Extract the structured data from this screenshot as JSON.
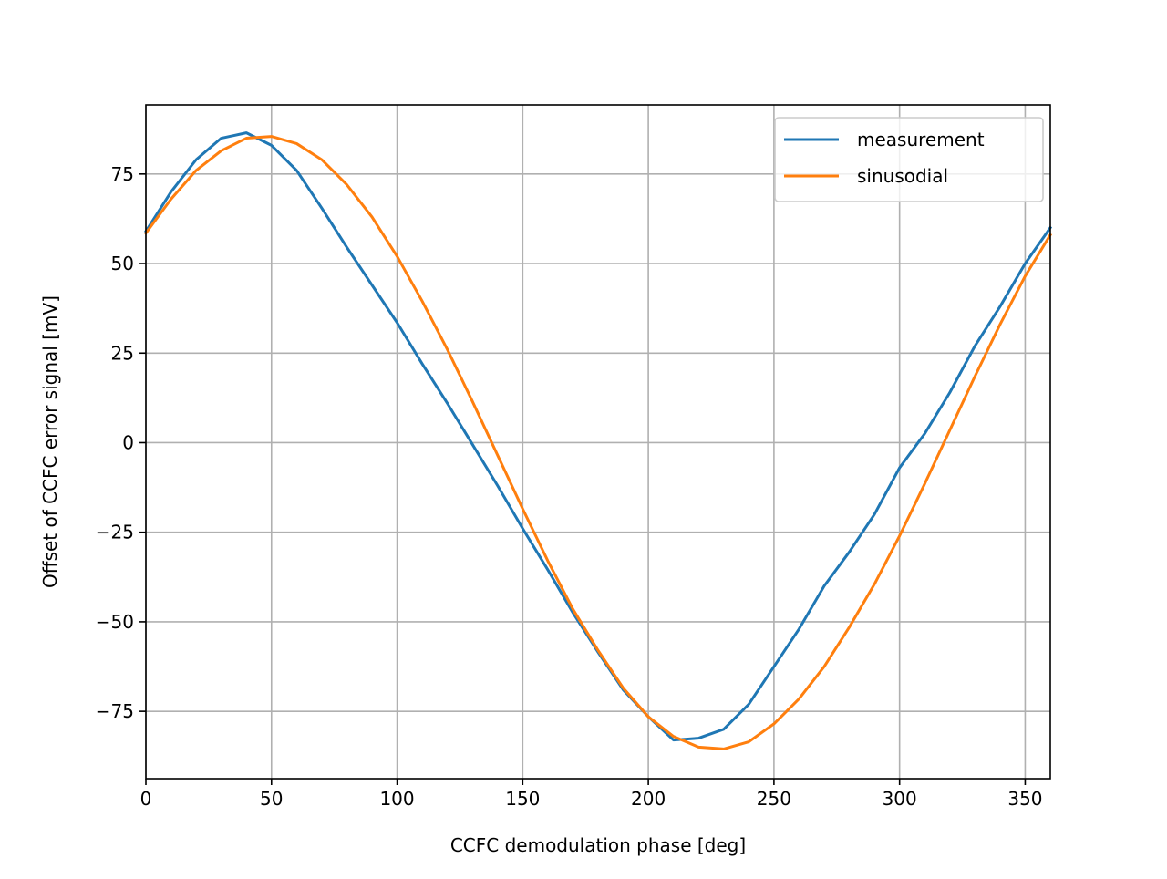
{
  "chart_data": {
    "type": "line",
    "title": "",
    "xlabel": "CCFC demodulation phase [deg]",
    "ylabel": "Offset of CCFC error signal [mV]",
    "xlim": [
      0,
      360
    ],
    "ylim": [
      -93.8,
      94.3
    ],
    "xticks": [
      0,
      50,
      100,
      150,
      200,
      250,
      300,
      350
    ],
    "yticks": [
      -75,
      -50,
      -25,
      0,
      25,
      50,
      75
    ],
    "xtick_labels": [
      "0",
      "50",
      "100",
      "150",
      "200",
      "250",
      "300",
      "350"
    ],
    "ytick_labels": [
      "−75",
      "−50",
      "−25",
      "0",
      "25",
      "50",
      "75"
    ],
    "grid": true,
    "legend_position": "upper right",
    "x": [
      0,
      10,
      20,
      30,
      40,
      50,
      60,
      70,
      80,
      90,
      100,
      110,
      120,
      130,
      140,
      150,
      160,
      170,
      180,
      190,
      200,
      210,
      220,
      230,
      240,
      250,
      260,
      270,
      280,
      290,
      300,
      310,
      320,
      330,
      340,
      350,
      360
    ],
    "series": [
      {
        "name": "measurement",
        "color": "#1f77b4",
        "values": [
          59,
          70,
          79,
          85,
          86.5,
          83,
          76,
          65.5,
          54.5,
          44,
          33.5,
          22,
          11,
          -0.5,
          -12,
          -24,
          -35.5,
          -47.5,
          -58.5,
          -69,
          -76.5,
          -83,
          -82.5,
          -80,
          -73,
          -62.5,
          -52,
          -40,
          -30.5,
          -20,
          -7,
          2.5,
          14,
          27,
          38,
          50,
          60
        ]
      },
      {
        "name": "sinusodial",
        "color": "#ff7f0e",
        "values": [
          58.5,
          68,
          76,
          81.5,
          85,
          85.5,
          83.5,
          79,
          72,
          63,
          52,
          39.5,
          26,
          11.5,
          -3.5,
          -18.5,
          -33,
          -46.5,
          -58,
          -68.5,
          -76.5,
          -82,
          -85,
          -85.5,
          -83.5,
          -78.5,
          -71.5,
          -62.5,
          -51.5,
          -39.5,
          -26,
          -11.5,
          3.5,
          18.5,
          33,
          46.5,
          58
        ]
      }
    ]
  }
}
